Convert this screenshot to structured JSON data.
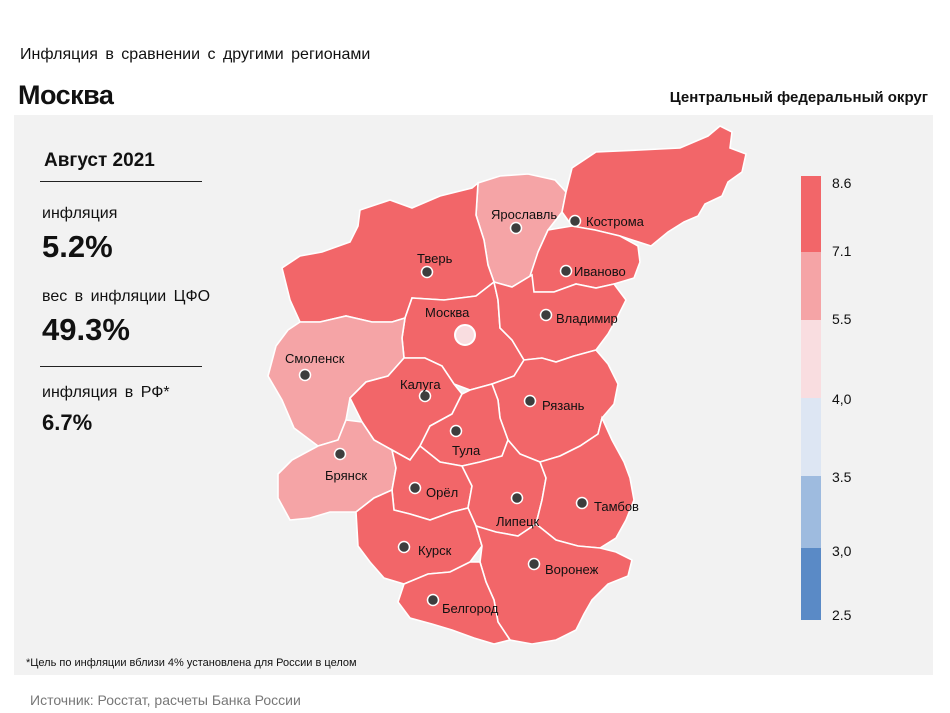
{
  "header": {
    "subtitle": "Инфляция  в сравнении  с другими  регионами",
    "city": "Москва",
    "district": "Центральный федеральный округ"
  },
  "stats": {
    "period": "Август 2021",
    "inflation_label": "инфляция",
    "inflation_value": "5.2%",
    "weight_label": "вес в инфляции  ЦФО",
    "weight_value": "49.3%",
    "rf_label": "инфляция  в РФ*",
    "rf_value": "6.7%"
  },
  "legend": {
    "ticks": [
      "8.6",
      "7.1",
      "5.5",
      "4,0",
      "3.5",
      "3,0",
      "2.5"
    ],
    "colors": [
      "#f26669",
      "#f5a4a6",
      "#f9dde0",
      "#dde6f3",
      "#9ebbdf",
      "#5a8ac6"
    ]
  },
  "map_data": {
    "regions": [
      {
        "name": "Ярославль",
        "level": 2
      },
      {
        "name": "Кострома",
        "level": 1
      },
      {
        "name": "Тверь",
        "level": 1
      },
      {
        "name": "Иваново",
        "level": 1
      },
      {
        "name": "Москва",
        "level": 1
      },
      {
        "name": "Владимир",
        "level": 1
      },
      {
        "name": "Смоленск",
        "level": 2
      },
      {
        "name": "Калуга",
        "level": 1
      },
      {
        "name": "Рязань",
        "level": 1
      },
      {
        "name": "Тула",
        "level": 1
      },
      {
        "name": "Брянск",
        "level": 2
      },
      {
        "name": "Орёл",
        "level": 1
      },
      {
        "name": "Липецк",
        "level": 1
      },
      {
        "name": "Тамбов",
        "level": 1
      },
      {
        "name": "Курск",
        "level": 1
      },
      {
        "name": "Воронеж",
        "level": 1
      },
      {
        "name": "Белгород",
        "level": 1
      }
    ]
  },
  "footnote": "*Цель по инфляции вблизи 4% установлена для России в целом",
  "source": "Источник: Росстат, расчеты Банка России"
}
